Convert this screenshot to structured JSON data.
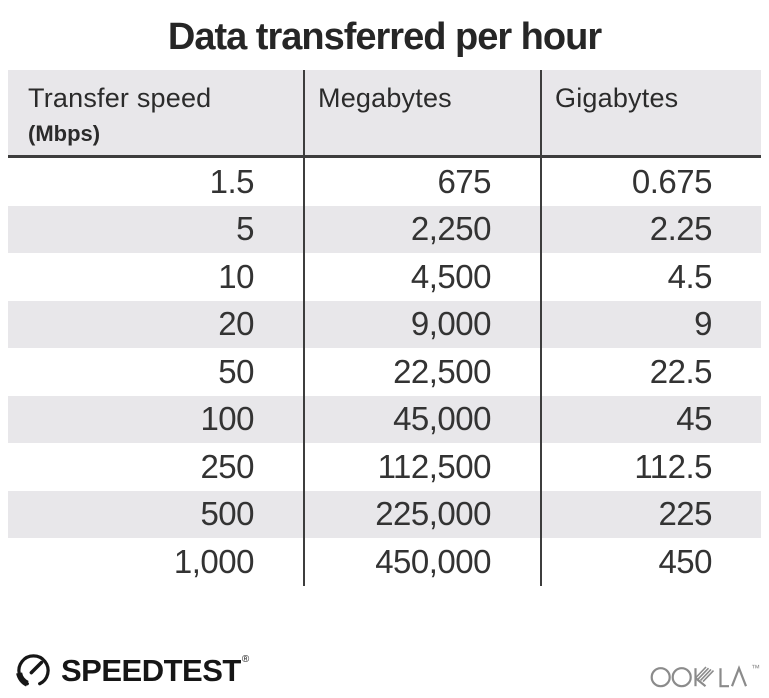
{
  "title": "Data transferred per hour",
  "table": {
    "columns": [
      {
        "label": "Transfer speed",
        "sublabel": "(Mbps)"
      },
      {
        "label": "Megabytes",
        "sublabel": ""
      },
      {
        "label": "Gigabytes",
        "sublabel": ""
      }
    ],
    "rows": [
      [
        "1.5",
        "675",
        "0.675"
      ],
      [
        "5",
        "2,250",
        "2.25"
      ],
      [
        "10",
        "4,500",
        "4.5"
      ],
      [
        "20",
        "9,000",
        "9"
      ],
      [
        "50",
        "22,500",
        "22.5"
      ],
      [
        "100",
        "45,000",
        "45"
      ],
      [
        "250",
        "112,500",
        "112.5"
      ],
      [
        "500",
        "225,000",
        "225"
      ],
      [
        "1,000",
        "450,000",
        "450"
      ]
    ]
  },
  "footer": {
    "speedtest_text": "SPEEDTEST",
    "speedtest_mark": "®",
    "ookla_text": "OOKLA",
    "ookla_mark": "™"
  },
  "icons": {
    "speedtest_gauge": "gauge-with-needle-icon",
    "ookla_wordmark": "ookla-wordmark-icon"
  },
  "colors": {
    "stripe": "#e8e7ea",
    "line": "#3d3d3d",
    "text": "#333333",
    "title": "#262626",
    "header-text": "#2b2b2b",
    "black": "#161616",
    "ookla": "#8b8b8b",
    "bg": "#ffffff"
  },
  "chart_data": {
    "type": "table",
    "title": "Data transferred per hour",
    "columns": [
      "Transfer speed (Mbps)",
      "Megabytes",
      "Gigabytes"
    ],
    "rows": [
      [
        1.5,
        675,
        0.675
      ],
      [
        5,
        2250,
        2.25
      ],
      [
        10,
        4500,
        4.5
      ],
      [
        20,
        9000,
        9
      ],
      [
        50,
        22500,
        22.5
      ],
      [
        100,
        45000,
        45
      ],
      [
        250,
        112500,
        112.5
      ],
      [
        500,
        225000,
        225
      ],
      [
        1000,
        450000,
        450
      ]
    ],
    "layout": {
      "row_striping": true,
      "column_dividers": true,
      "header_underline": true
    }
  }
}
